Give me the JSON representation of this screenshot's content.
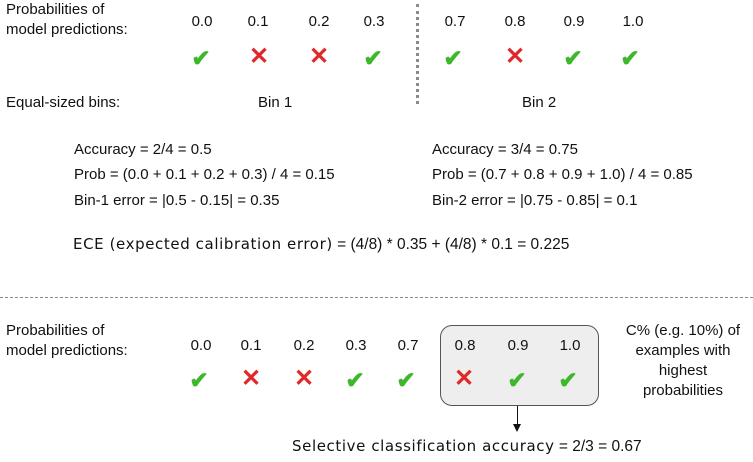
{
  "top": {
    "prob_label_line1": "Probabilities of",
    "prob_label_line2": "model predictions:",
    "values_left": [
      "0.0",
      "0.1",
      "0.2",
      "0.3"
    ],
    "values_right": [
      "0.7",
      "0.8",
      "0.9",
      "1.0"
    ],
    "marks_left": [
      "check",
      "cross",
      "cross",
      "check"
    ],
    "marks_right": [
      "check",
      "cross",
      "check",
      "check"
    ],
    "bins_label": "Equal-sized bins:",
    "bin1": "Bin 1",
    "bin2": "Bin 2",
    "bin1_accuracy": "Accuracy = 2/4 = 0.5",
    "bin1_prob": "Prob = (0.0 + 0.1 + 0.2 + 0.3) / 4 = 0.15",
    "bin1_error": "Bin-1 error = |0.5 - 0.15| = 0.35",
    "bin2_accuracy": "Accuracy = 3/4 = 0.75",
    "bin2_prob": "Prob = (0.7 + 0.8 + 0.9 + 1.0) / 4 = 0.85",
    "bin2_error": "Bin-2 error = |0.75 - 0.85| = 0.1",
    "ece_term": "ECE (expected calibration error)",
    "ece_formula": " = (4/8) * 0.35 + (4/8) * 0.1 = 0.225"
  },
  "bottom": {
    "prob_label_line1": "Probabilities of",
    "prob_label_line2": "model predictions:",
    "values": [
      "0.0",
      "0.1",
      "0.2",
      "0.3",
      "0.7",
      "0.8",
      "0.9",
      "1.0"
    ],
    "marks": [
      "check",
      "cross",
      "cross",
      "check",
      "check",
      "cross",
      "check",
      "check"
    ],
    "note_line1": "C% (e.g. 10%) of",
    "note_line2": "examples with",
    "note_line3": "highest",
    "note_line4": "probabilities",
    "sel_term": "Selective classification accuracy",
    "sel_formula": " = 2/3 = 0.67"
  },
  "colors": {
    "check": "#3db82a",
    "cross": "#e0282a",
    "box_fill": "#eeeeee"
  },
  "icons": {
    "check": "check-mark-icon",
    "cross": "cross-mark-icon"
  }
}
